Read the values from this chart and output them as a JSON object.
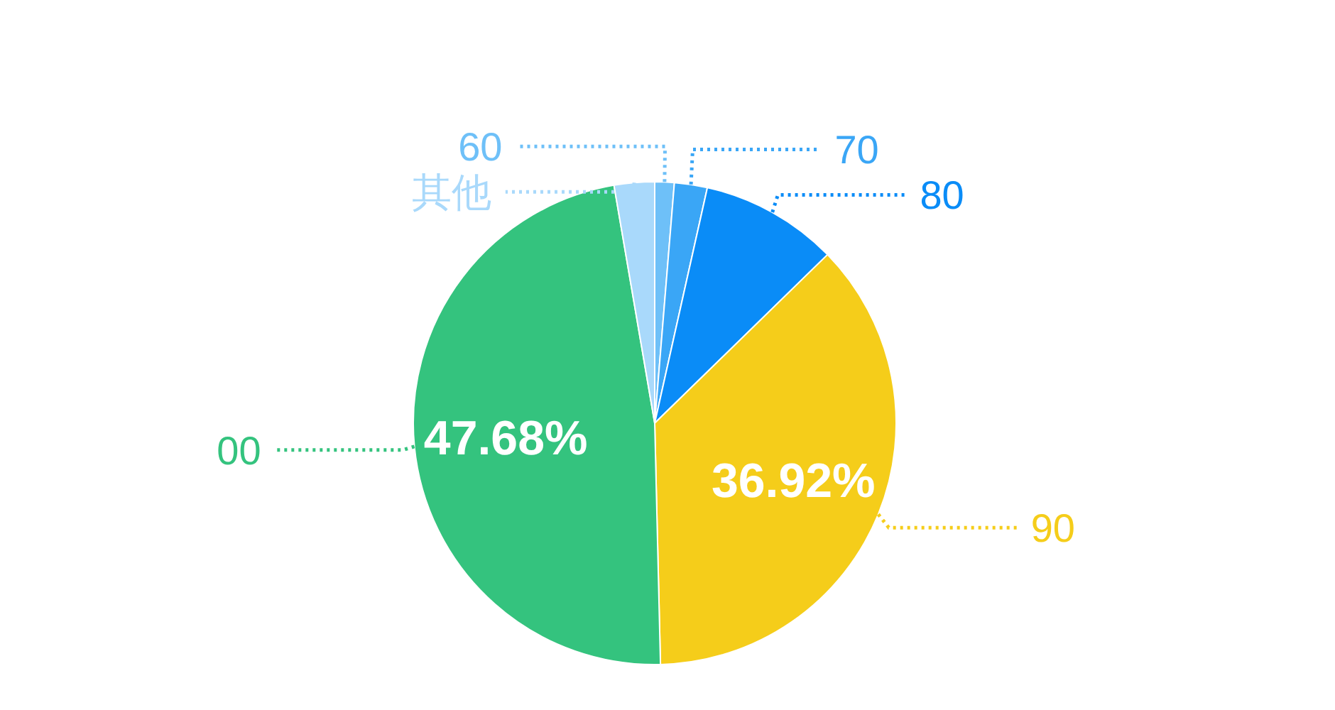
{
  "chart_data": {
    "type": "pie",
    "categories": [
      "60",
      "70",
      "80",
      "90",
      "00",
      "其他"
    ],
    "values": [
      1.3,
      2.2,
      9.2,
      36.92,
      47.68,
      2.7
    ],
    "colors": [
      "#6ec0f8",
      "#3aa6f6",
      "#0a8cf7",
      "#f5cd1a",
      "#34c37e",
      "#a9d9fb"
    ],
    "value_labels": [
      null,
      null,
      null,
      "36.92%",
      "47.68%",
      null
    ]
  }
}
